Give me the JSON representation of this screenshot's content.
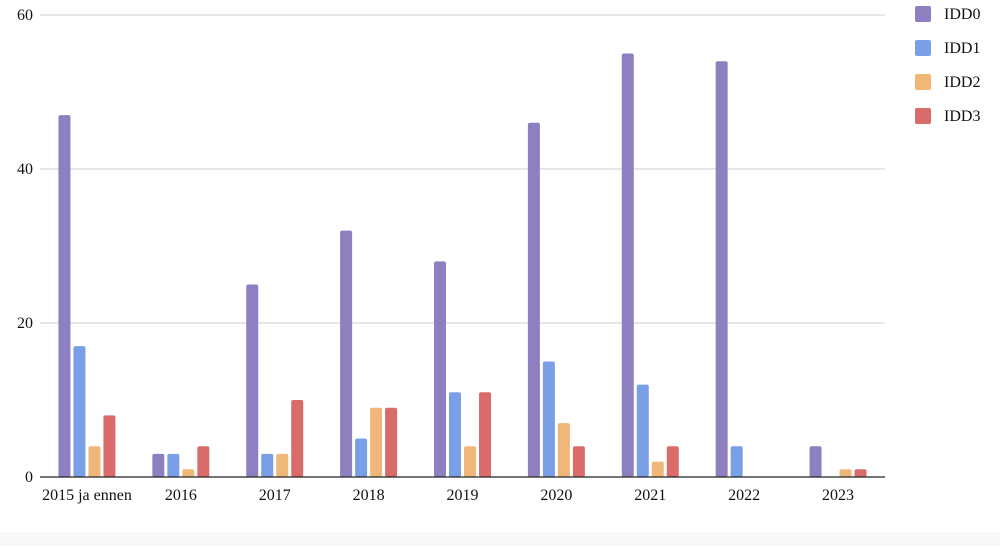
{
  "chart_data": {
    "type": "bar",
    "categories": [
      "2015 ja ennen",
      "2016",
      "2017",
      "2018",
      "2019",
      "2020",
      "2021",
      "2022",
      "2023"
    ],
    "series": [
      {
        "name": "IDD0",
        "color": "#8e7fc0",
        "values": [
          47,
          3,
          25,
          32,
          28,
          46,
          55,
          54,
          4
        ]
      },
      {
        "name": "IDD1",
        "color": "#79a0e6",
        "values": [
          17,
          3,
          3,
          5,
          11,
          15,
          12,
          4,
          0
        ]
      },
      {
        "name": "IDD2",
        "color": "#f0b878",
        "values": [
          4,
          1,
          3,
          9,
          4,
          7,
          2,
          0,
          1
        ]
      },
      {
        "name": "IDD3",
        "color": "#d96b6b",
        "values": [
          8,
          4,
          10,
          9,
          11,
          4,
          4,
          0,
          1
        ]
      }
    ],
    "ylim": [
      0,
      60
    ],
    "yticks": [
      0,
      20,
      40,
      60
    ],
    "grid": true,
    "legend_position": "right"
  }
}
